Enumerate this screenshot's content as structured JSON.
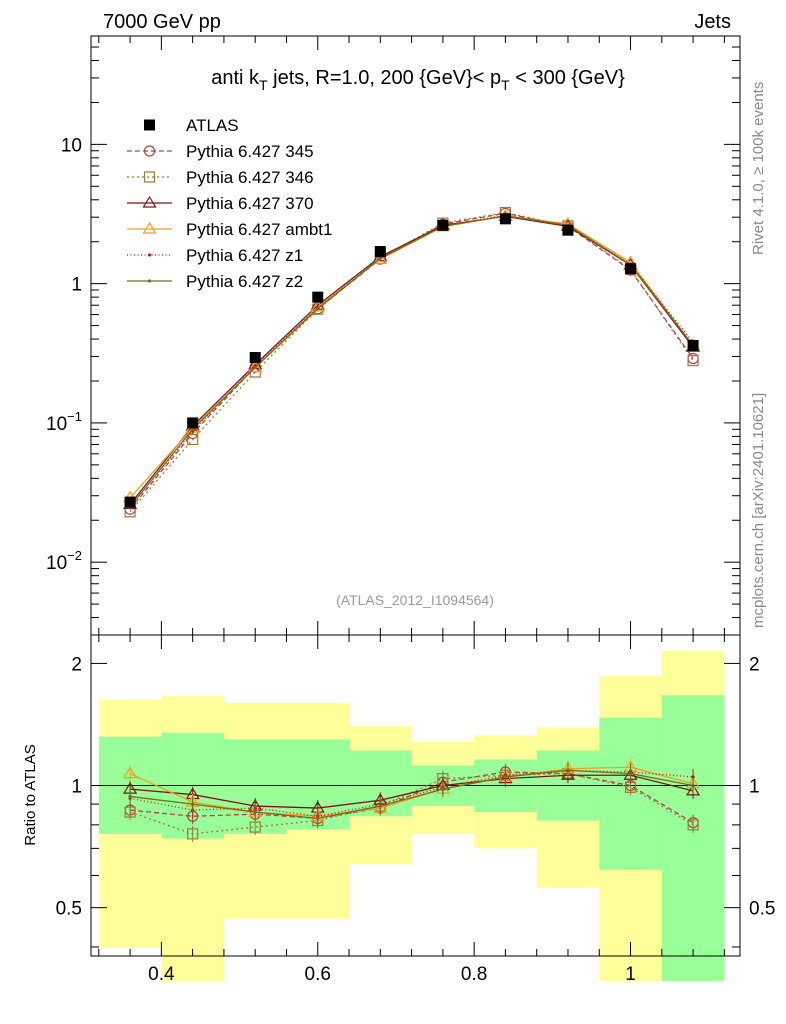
{
  "header": {
    "left": "7000 GeV pp",
    "right": "Jets"
  },
  "side_labels": {
    "top": "Rivet 4.1.0, ≥ 100k events",
    "bottom": "mcplots.cern.ch [arXiv:2401.10621]"
  },
  "chart_data": {
    "type": "line",
    "title_parts": {
      "pre": "anti k",
      "sub1": "T",
      "mid": " jets, R=1.0,  200 {GeV}< p",
      "sub2": "T",
      "post": " < 300 {GeV}"
    },
    "watermark": "(ATLAS_2012_I1094564)",
    "ratio_ylabel": "Ratio to ATLAS",
    "xlim": [
      0.31,
      1.14
    ],
    "ylim_main": [
      0.003,
      60
    ],
    "ylim_ratio": [
      0.38,
      2.35
    ],
    "yscale_main": "log",
    "yscale_ratio": "log",
    "x_ticks": [
      0.4,
      0.6,
      0.8,
      1.0
    ],
    "x_tick_labels": [
      "0.4",
      "0.6",
      "0.8",
      "1"
    ],
    "main_tick_labels": [
      {
        "value": 10,
        "base": "10",
        "exp": ""
      },
      {
        "value": 1,
        "base": "1",
        "exp": ""
      },
      {
        "value": 0.1,
        "base": "10",
        "exp": "−1"
      },
      {
        "value": 0.01,
        "base": "10",
        "exp": "−2"
      }
    ],
    "ratio_ticks": [
      2,
      1,
      0.5
    ],
    "ratio_tick_labels": [
      "2",
      "1",
      "0.5"
    ],
    "x": [
      0.36,
      0.44,
      0.52,
      0.6,
      0.68,
      0.76,
      0.84,
      0.92,
      1.0,
      1.08
    ],
    "bin_edges": [
      0.32,
      0.4,
      0.48,
      0.56,
      0.64,
      0.72,
      0.8,
      0.88,
      0.96,
      1.04,
      1.12
    ],
    "data": {
      "name": "ATLAS",
      "values": [
        0.027,
        0.1,
        0.295,
        0.8,
        1.7,
        2.62,
        2.92,
        2.42,
        1.28,
        0.36
      ],
      "band_inner": [
        [
          0.76,
          1.32
        ],
        [
          0.74,
          1.35
        ],
        [
          0.76,
          1.3
        ],
        [
          0.78,
          1.3
        ],
        [
          0.84,
          1.22
        ],
        [
          0.89,
          1.12
        ],
        [
          0.86,
          1.16
        ],
        [
          0.82,
          1.22
        ],
        [
          0.62,
          1.47
        ],
        [
          0.33,
          1.67
        ]
      ],
      "band_outer": [
        [
          0.4,
          1.63
        ],
        [
          0.33,
          1.66
        ],
        [
          0.47,
          1.6
        ],
        [
          0.47,
          1.6
        ],
        [
          0.64,
          1.4
        ],
        [
          0.76,
          1.28
        ],
        [
          0.7,
          1.33
        ],
        [
          0.56,
          1.39
        ],
        [
          0.33,
          1.86
        ],
        [
          0.33,
          2.15
        ]
      ]
    },
    "series": [
      {
        "name": "Pythia 6.427 345",
        "color": "#b24242",
        "dash": "5,3",
        "marker": "circle",
        "values": [
          0.024,
          0.084,
          0.252,
          0.66,
          1.5,
          2.67,
          3.2,
          2.58,
          1.25,
          0.29
        ],
        "ratio": [
          0.87,
          0.84,
          0.85,
          0.83,
          0.88,
          1.02,
          1.08,
          1.07,
          1.0,
          0.81
        ]
      },
      {
        "name": "Pythia 6.427 346",
        "color": "#a0783c",
        "dash": "2,3",
        "marker": "square",
        "values": [
          0.023,
          0.076,
          0.232,
          0.655,
          1.52,
          2.72,
          3.24,
          2.6,
          1.27,
          0.28
        ],
        "ratio": [
          0.86,
          0.76,
          0.79,
          0.82,
          0.89,
          1.04,
          1.06,
          1.07,
          0.99,
          0.8
        ]
      },
      {
        "name": "Pythia 6.427 370",
        "color": "#7a1515",
        "dash": "",
        "marker": "triangle",
        "values": [
          0.026,
          0.095,
          0.262,
          0.7,
          1.56,
          2.62,
          3.04,
          2.58,
          1.36,
          0.35
        ],
        "ratio": [
          0.98,
          0.95,
          0.89,
          0.88,
          0.92,
          1.0,
          1.04,
          1.06,
          1.06,
          0.97
        ]
      },
      {
        "name": "Pythia 6.427 ambt1",
        "color": "#f0a020",
        "dash": "",
        "marker": "triangle",
        "values": [
          0.029,
          0.092,
          0.25,
          0.68,
          1.5,
          2.56,
          3.06,
          2.68,
          1.42,
          0.36
        ],
        "ratio": [
          1.07,
          0.91,
          0.86,
          0.84,
          0.88,
          0.98,
          1.05,
          1.1,
          1.11,
          1.01
        ]
      },
      {
        "name": "Pythia 6.427 z1",
        "color": "#c01818",
        "dash": "1,2.5",
        "marker": "dot",
        "values": [
          0.025,
          0.087,
          0.258,
          0.67,
          1.53,
          2.6,
          3.1,
          2.63,
          1.38,
          0.38
        ],
        "ratio": [
          0.93,
          0.87,
          0.88,
          0.84,
          0.9,
          0.99,
          1.06,
          1.09,
          1.08,
          1.05
        ]
      },
      {
        "name": "Pythia 6.427 z2",
        "color": "#707020",
        "dash": "",
        "marker": "dot",
        "values": [
          0.025,
          0.09,
          0.25,
          0.66,
          1.52,
          2.58,
          3.07,
          2.62,
          1.37,
          0.36
        ],
        "ratio": [
          0.94,
          0.9,
          0.86,
          0.83,
          0.89,
          0.98,
          1.05,
          1.09,
          1.07,
          1.0
        ]
      }
    ]
  }
}
